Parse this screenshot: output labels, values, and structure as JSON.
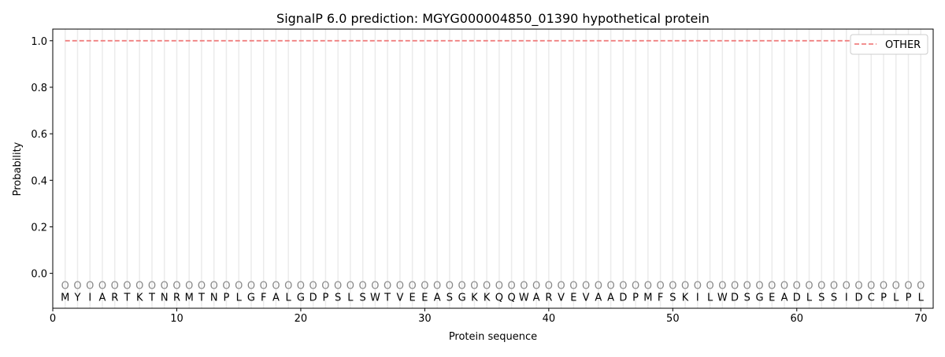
{
  "chart_data": {
    "type": "line",
    "title": "SignalP 6.0 prediction: MGYG000004850_01390 hypothetical protein",
    "xlabel": "Protein sequence",
    "ylabel": "Probability",
    "xlim": [
      0,
      71
    ],
    "ylim": [
      -0.15,
      1.05
    ],
    "xticks": [
      0,
      10,
      20,
      30,
      40,
      50,
      60,
      70
    ],
    "yticks": [
      "0.0",
      "0.2",
      "0.4",
      "0.6",
      "0.8",
      "1.0"
    ],
    "sequence": [
      "M",
      "Y",
      "I",
      "A",
      "R",
      "T",
      "K",
      "T",
      "N",
      "R",
      "M",
      "T",
      "N",
      "P",
      "L",
      "G",
      "F",
      "A",
      "L",
      "G",
      "D",
      "P",
      "S",
      "L",
      "S",
      "W",
      "T",
      "V",
      "E",
      "E",
      "A",
      "S",
      "G",
      "K",
      "K",
      "Q",
      "Q",
      "W",
      "A",
      "R",
      "V",
      "E",
      "V",
      "A",
      "A",
      "D",
      "P",
      "M",
      "F",
      "S",
      "K",
      "I",
      "L",
      "W",
      "D",
      "S",
      "G",
      "E",
      "A",
      "D",
      "L",
      "S",
      "S",
      "I",
      "D",
      "C",
      "P",
      "L",
      "P",
      "L"
    ],
    "region_label": "O",
    "series": [
      {
        "name": "OTHER",
        "color": "#f08080",
        "style": "dashed",
        "x_range": [
          1,
          70
        ],
        "value": 1.0
      }
    ],
    "legend": "top-right",
    "grid": "vertical per residue"
  }
}
